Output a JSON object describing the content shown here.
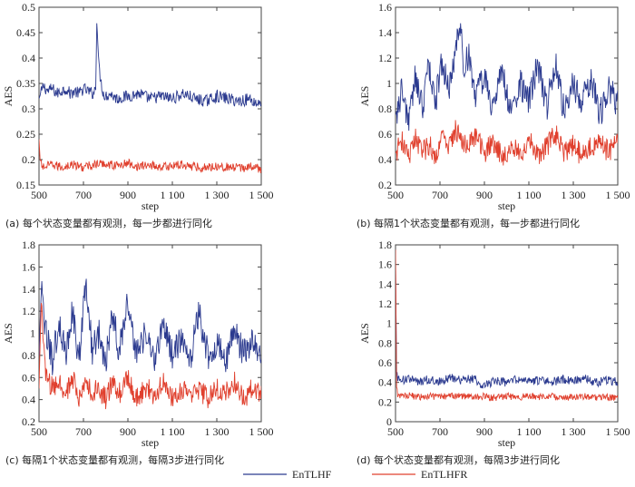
{
  "chart_data": [
    {
      "type": "line",
      "caption": "(a) 每个状态变量都有观测，每一步都进行同化",
      "xlabel": "step",
      "ylabel": "AES",
      "xlim": [
        500,
        1500
      ],
      "ylim": [
        0.15,
        0.5
      ],
      "xticks": [
        500,
        700,
        900,
        1100,
        1300,
        1500
      ],
      "xtick_labels": [
        "500",
        "700",
        "900",
        "1 100",
        "1 300",
        "1 500"
      ],
      "yticks": [
        0.15,
        0.2,
        0.25,
        0.3,
        0.35,
        0.4,
        0.45,
        0.5
      ],
      "ytick_labels": [
        "0.15",
        "0.2",
        "0.25",
        "0.3",
        "0.35",
        "0.4",
        "0.45",
        "0.5"
      ],
      "series": [
        {
          "name": "EnTLHF",
          "color": "#2b3a8f",
          "x": [
            500,
            520,
            540,
            560,
            580,
            600,
            620,
            640,
            660,
            680,
            700,
            720,
            740,
            755,
            760,
            765,
            770,
            780,
            790,
            800,
            820,
            850,
            900,
            950,
            1000,
            1050,
            1100,
            1150,
            1200,
            1250,
            1300,
            1350,
            1400,
            1450,
            1480,
            1500
          ],
          "y": [
            0.32,
            0.345,
            0.335,
            0.34,
            0.33,
            0.335,
            0.34,
            0.33,
            0.335,
            0.33,
            0.34,
            0.335,
            0.33,
            0.34,
            0.48,
            0.43,
            0.38,
            0.35,
            0.33,
            0.325,
            0.33,
            0.32,
            0.325,
            0.33,
            0.32,
            0.325,
            0.32,
            0.33,
            0.32,
            0.315,
            0.325,
            0.32,
            0.315,
            0.32,
            0.31,
            0.315
          ]
        },
        {
          "name": "EnTLHFR",
          "color": "#e0402e",
          "x": [
            500,
            505,
            510,
            520,
            560,
            600,
            650,
            700,
            750,
            800,
            850,
            900,
            950,
            1000,
            1050,
            1100,
            1150,
            1200,
            1250,
            1300,
            1350,
            1400,
            1450,
            1500
          ],
          "y": [
            0.24,
            0.2,
            0.19,
            0.185,
            0.19,
            0.185,
            0.19,
            0.185,
            0.19,
            0.192,
            0.188,
            0.193,
            0.186,
            0.19,
            0.185,
            0.188,
            0.19,
            0.186,
            0.184,
            0.188,
            0.185,
            0.183,
            0.186,
            0.182
          ]
        }
      ]
    },
    {
      "type": "line",
      "caption": "(b) 每隔1个状态变量都有观测，每一步都进行同化",
      "xlabel": "step",
      "ylabel": "AES",
      "xlim": [
        500,
        1500
      ],
      "ylim": [
        0.2,
        1.6
      ],
      "xticks": [
        500,
        700,
        900,
        1100,
        1300,
        1500
      ],
      "xtick_labels": [
        "500",
        "700",
        "900",
        "1 100",
        "1 300",
        "1 500"
      ],
      "yticks": [
        0.2,
        0.4,
        0.6,
        0.8,
        1.0,
        1.2,
        1.4,
        1.6
      ],
      "ytick_labels": [
        "0.2",
        "0.4",
        "0.6",
        "0.8",
        "1",
        "1.2",
        "1.4",
        "1.6"
      ],
      "series": [
        {
          "name": "EnTLHF",
          "color": "#2b3a8f",
          "x": [
            500,
            530,
            560,
            590,
            620,
            650,
            680,
            710,
            740,
            770,
            790,
            810,
            830,
            860,
            900,
            940,
            980,
            1020,
            1060,
            1100,
            1140,
            1180,
            1220,
            1260,
            1300,
            1340,
            1380,
            1420,
            1460,
            1500
          ],
          "y": [
            0.75,
            0.95,
            0.7,
            1.05,
            0.8,
            1.15,
            0.85,
            1.2,
            0.9,
            1.3,
            1.45,
            1.1,
            1.25,
            0.9,
            1.05,
            0.8,
            1.1,
            0.75,
            1.0,
            0.85,
            1.15,
            0.8,
            1.2,
            0.75,
            1.0,
            0.85,
            1.05,
            0.75,
            0.95,
            0.85
          ]
        },
        {
          "name": "EnTLHFR",
          "color": "#e0402e",
          "x": [
            500,
            530,
            560,
            590,
            620,
            650,
            680,
            710,
            740,
            770,
            800,
            830,
            860,
            900,
            940,
            980,
            1020,
            1060,
            1100,
            1140,
            1180,
            1220,
            1260,
            1300,
            1340,
            1380,
            1420,
            1460,
            1500
          ],
          "y": [
            0.45,
            0.55,
            0.4,
            0.58,
            0.45,
            0.52,
            0.42,
            0.6,
            0.48,
            0.65,
            0.55,
            0.5,
            0.6,
            0.45,
            0.55,
            0.42,
            0.5,
            0.45,
            0.55,
            0.42,
            0.5,
            0.6,
            0.45,
            0.52,
            0.42,
            0.5,
            0.55,
            0.45,
            0.58
          ]
        }
      ]
    },
    {
      "type": "line",
      "caption": "(c) 每隔1个状态变量都有观测，每隔3步进行同化",
      "xlabel": "step",
      "ylabel": "AES",
      "xlim": [
        500,
        1500
      ],
      "ylim": [
        0.2,
        1.8
      ],
      "xticks": [
        500,
        700,
        900,
        1100,
        1300,
        1500
      ],
      "xtick_labels": [
        "500",
        "700",
        "900",
        "1 100",
        "1 300",
        "1 500"
      ],
      "yticks": [
        0.2,
        0.4,
        0.6,
        0.8,
        1.0,
        1.2,
        1.4,
        1.6,
        1.8
      ],
      "ytick_labels": [
        "0.2",
        "0.4",
        "0.6",
        "0.8",
        "1",
        "1.2",
        "1.4",
        "1.6",
        "1.8"
      ],
      "series": [
        {
          "name": "EnTLHF",
          "color": "#2b3a8f",
          "x": [
            500,
            510,
            530,
            560,
            590,
            620,
            650,
            680,
            710,
            740,
            770,
            800,
            830,
            860,
            900,
            940,
            980,
            1020,
            1060,
            1100,
            1140,
            1180,
            1220,
            1260,
            1300,
            1340,
            1380,
            1420,
            1460,
            1500
          ],
          "y": [
            0.8,
            1.4,
            1.0,
            0.75,
            1.1,
            0.8,
            1.2,
            0.75,
            1.45,
            0.85,
            1.0,
            0.75,
            1.2,
            0.85,
            1.3,
            0.8,
            1.0,
            0.75,
            1.1,
            0.8,
            0.95,
            0.75,
            1.2,
            0.8,
            0.9,
            0.75,
            1.05,
            0.8,
            0.95,
            0.75
          ]
        },
        {
          "name": "EnTLHFR",
          "color": "#e0402e",
          "x": [
            500,
            510,
            530,
            560,
            590,
            620,
            650,
            680,
            710,
            740,
            770,
            800,
            830,
            860,
            900,
            940,
            980,
            1020,
            1060,
            1100,
            1140,
            1180,
            1220,
            1260,
            1300,
            1340,
            1380,
            1420,
            1460,
            1500
          ],
          "y": [
            0.5,
            1.3,
            0.6,
            0.5,
            0.55,
            0.45,
            0.6,
            0.4,
            0.55,
            0.45,
            0.5,
            0.4,
            0.55,
            0.45,
            0.6,
            0.4,
            0.5,
            0.45,
            0.55,
            0.4,
            0.5,
            0.45,
            0.5,
            0.4,
            0.5,
            0.45,
            0.55,
            0.4,
            0.5,
            0.45
          ]
        }
      ]
    },
    {
      "type": "line",
      "caption": "(d) 每个状态变量都有观测，每隔3步进行同化",
      "xlabel": "step",
      "ylabel": "AES",
      "xlim": [
        500,
        1500
      ],
      "ylim": [
        0,
        1.8
      ],
      "xticks": [
        500,
        700,
        900,
        1100,
        1300,
        1500
      ],
      "xtick_labels": [
        "500",
        "700",
        "900",
        "1 100",
        "1 300",
        "1 500"
      ],
      "yticks": [
        0,
        0.2,
        0.4,
        0.6,
        0.8,
        1.0,
        1.2,
        1.4,
        1.6,
        1.8
      ],
      "ytick_labels": [
        "0",
        "0.2",
        "0.4",
        "0.6",
        "0.8",
        "1",
        "1.2",
        "1.4",
        "1.6",
        "1.8"
      ],
      "series": [
        {
          "name": "EnTLHF",
          "color": "#2b3a8f",
          "x": [
            500,
            505,
            510,
            530,
            560,
            600,
            650,
            700,
            750,
            800,
            850,
            900,
            950,
            1000,
            1050,
            1100,
            1150,
            1200,
            1250,
            1300,
            1350,
            1400,
            1450,
            1500
          ],
          "y": [
            1.6,
            0.5,
            0.45,
            0.42,
            0.44,
            0.4,
            0.43,
            0.41,
            0.45,
            0.42,
            0.44,
            0.36,
            0.42,
            0.4,
            0.43,
            0.41,
            0.42,
            0.4,
            0.43,
            0.41,
            0.44,
            0.4,
            0.42,
            0.41
          ]
        },
        {
          "name": "EnTLHFR",
          "color": "#e0402e",
          "x": [
            500,
            505,
            510,
            530,
            560,
            600,
            650,
            700,
            750,
            800,
            850,
            900,
            950,
            1000,
            1050,
            1100,
            1150,
            1200,
            1250,
            1300,
            1350,
            1400,
            1450,
            1500
          ],
          "y": [
            1.75,
            0.35,
            0.28,
            0.26,
            0.27,
            0.25,
            0.26,
            0.25,
            0.27,
            0.26,
            0.25,
            0.26,
            0.24,
            0.26,
            0.25,
            0.26,
            0.25,
            0.26,
            0.24,
            0.25,
            0.26,
            0.24,
            0.25,
            0.24
          ]
        }
      ]
    }
  ],
  "legend": {
    "placement": "bottom-center",
    "items": [
      {
        "label": "EnTLHF",
        "color": "#2b3a8f"
      },
      {
        "label": "EnTLHFR",
        "color": "#e0402e"
      }
    ]
  }
}
